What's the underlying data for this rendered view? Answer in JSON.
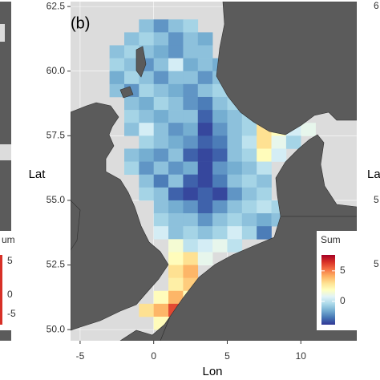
{
  "chart_data": {
    "type": "heatmap",
    "panel_label": "(b)",
    "x_label": "Lon",
    "y_label": "Lat",
    "legend_title": "Sum",
    "xlim": [
      -5.65,
      13.8
    ],
    "ylim": [
      49.57,
      62.69
    ],
    "xticks": [
      -5,
      0,
      5,
      10
    ],
    "yticks": [
      {
        "value": 50,
        "label": "50.0"
      },
      52.5,
      {
        "value": 55,
        "label": "55.0"
      },
      57.5,
      {
        "value": 60,
        "label": "60.0"
      },
      62.5
    ],
    "grid": true,
    "legend_position": "bottom-right",
    "colormap": [
      "#313695",
      "#4575b4",
      "#74add1",
      "#abd9e9",
      "#e0f3f8",
      "#ffffbf",
      "#fee090",
      "#fdae61",
      "#f46d43",
      "#d73027",
      "#a50026"
    ],
    "color_lim": [
      -3.8,
      7.6
    ],
    "color_ticks": [
      0,
      5
    ],
    "lon": [
      -4,
      -3,
      -2,
      -1,
      0,
      1,
      2,
      3,
      4,
      5,
      6,
      7,
      8,
      9,
      10
    ],
    "lat": [
      61.5,
      61.0,
      60.5,
      60.0,
      59.5,
      59.0,
      58.5,
      58.0,
      57.5,
      57.0,
      56.5,
      56.0,
      55.5,
      55.0,
      54.5,
      54.0,
      53.5,
      53.0,
      52.5,
      52.0,
      51.5,
      51.0,
      50.5,
      50.0
    ],
    "values": [
      [
        null,
        null,
        null,
        -1,
        -2,
        -1,
        -0.5,
        null,
        null,
        null,
        null,
        null,
        null,
        null,
        null
      ],
      [
        null,
        null,
        -1,
        -0.5,
        -1,
        -2,
        -1,
        -1.5,
        null,
        null,
        null,
        null,
        null,
        null,
        null
      ],
      [
        null,
        -1,
        -0.5,
        -1,
        -1.5,
        -2,
        -1,
        -1,
        null,
        null,
        null,
        null,
        null,
        null,
        null
      ],
      [
        null,
        -0.5,
        -1,
        -2,
        -1,
        0.5,
        -1.5,
        -1,
        -1.5,
        null,
        null,
        null,
        null,
        null,
        null
      ],
      [
        null,
        -1.5,
        -0.5,
        -1,
        -2,
        -1,
        -1,
        -2,
        -1,
        null,
        null,
        null,
        null,
        null,
        null
      ],
      [
        null,
        -1,
        -2,
        -0.5,
        -1,
        -1.5,
        -2,
        -1,
        -0.5,
        null,
        null,
        null,
        null,
        null,
        null
      ],
      [
        null,
        null,
        -1,
        -1.5,
        -0.5,
        -1,
        -2,
        -2.5,
        -1,
        -0.5,
        null,
        null,
        null,
        null,
        null
      ],
      [
        null,
        null,
        -0.5,
        -1,
        -1.5,
        -1,
        -1,
        -3,
        -1.5,
        -1,
        -0.5,
        null,
        null,
        null,
        null
      ],
      [
        null,
        null,
        -1,
        0.5,
        -1,
        -2,
        -1.5,
        -3.5,
        -2,
        -1,
        -0.5,
        3,
        2,
        0.5,
        1
      ],
      [
        null,
        null,
        null,
        -0.5,
        -1,
        -1.5,
        -2,
        -3,
        -2.5,
        -1,
        0,
        3,
        1,
        -0.5,
        null
      ],
      [
        null,
        null,
        -1,
        -1.5,
        -2,
        -1,
        -3,
        -3.5,
        -3,
        -1,
        -0.5,
        2,
        0.5,
        null,
        null
      ],
      [
        null,
        null,
        -0.5,
        -2,
        -1,
        -2,
        -1.5,
        -3.5,
        -2,
        -1.5,
        -1,
        0,
        null,
        null,
        null
      ],
      [
        null,
        null,
        null,
        -1,
        -2.5,
        -1,
        -3,
        -3.5,
        -2.5,
        -1,
        -0.5,
        -1,
        null,
        null,
        null
      ],
      [
        null,
        null,
        null,
        -0.5,
        -1,
        -3,
        -3.5,
        -3,
        -3.5,
        -2,
        -1,
        -0.5,
        null,
        null,
        null
      ],
      [
        null,
        null,
        null,
        null,
        -1,
        -1.5,
        -2,
        -3,
        -2,
        -1,
        -0.5,
        0,
        -0.5,
        null,
        null
      ],
      [
        null,
        null,
        null,
        null,
        -0.5,
        -1,
        -1,
        -2,
        -1,
        -0.5,
        -1,
        -1.5,
        -1,
        null,
        null
      ],
      [
        null,
        null,
        null,
        null,
        0.5,
        -1,
        -0.5,
        -1,
        -0.5,
        0.5,
        -0.5,
        -2.5,
        null,
        null,
        null
      ],
      [
        null,
        null,
        null,
        null,
        null,
        1.5,
        0,
        0.5,
        1,
        0,
        null,
        null,
        null,
        null,
        null
      ],
      [
        null,
        null,
        null,
        null,
        null,
        2,
        3,
        1,
        null,
        null,
        null,
        null,
        null,
        null,
        null
      ],
      [
        null,
        null,
        null,
        null,
        null,
        3,
        4,
        null,
        null,
        null,
        null,
        null,
        null,
        null,
        null
      ],
      [
        null,
        null,
        null,
        null,
        null,
        2.5,
        3.5,
        null,
        null,
        null,
        null,
        null,
        null,
        null,
        null
      ],
      [
        null,
        null,
        null,
        null,
        2,
        4,
        2,
        null,
        null,
        null,
        null,
        null,
        null,
        null,
        null
      ],
      [
        null,
        null,
        null,
        3,
        4,
        6,
        1.5,
        null,
        null,
        null,
        null,
        null,
        null,
        null,
        null
      ],
      [
        null,
        null,
        null,
        null,
        2,
        2.5,
        3,
        null,
        null,
        null,
        null,
        null,
        null,
        null,
        null
      ]
    ],
    "left_panel_fragments": [
      "um",
      "5",
      "0",
      "-5"
    ],
    "right_panel_fragments": [
      "La",
      "6",
      "5",
      "5"
    ]
  }
}
